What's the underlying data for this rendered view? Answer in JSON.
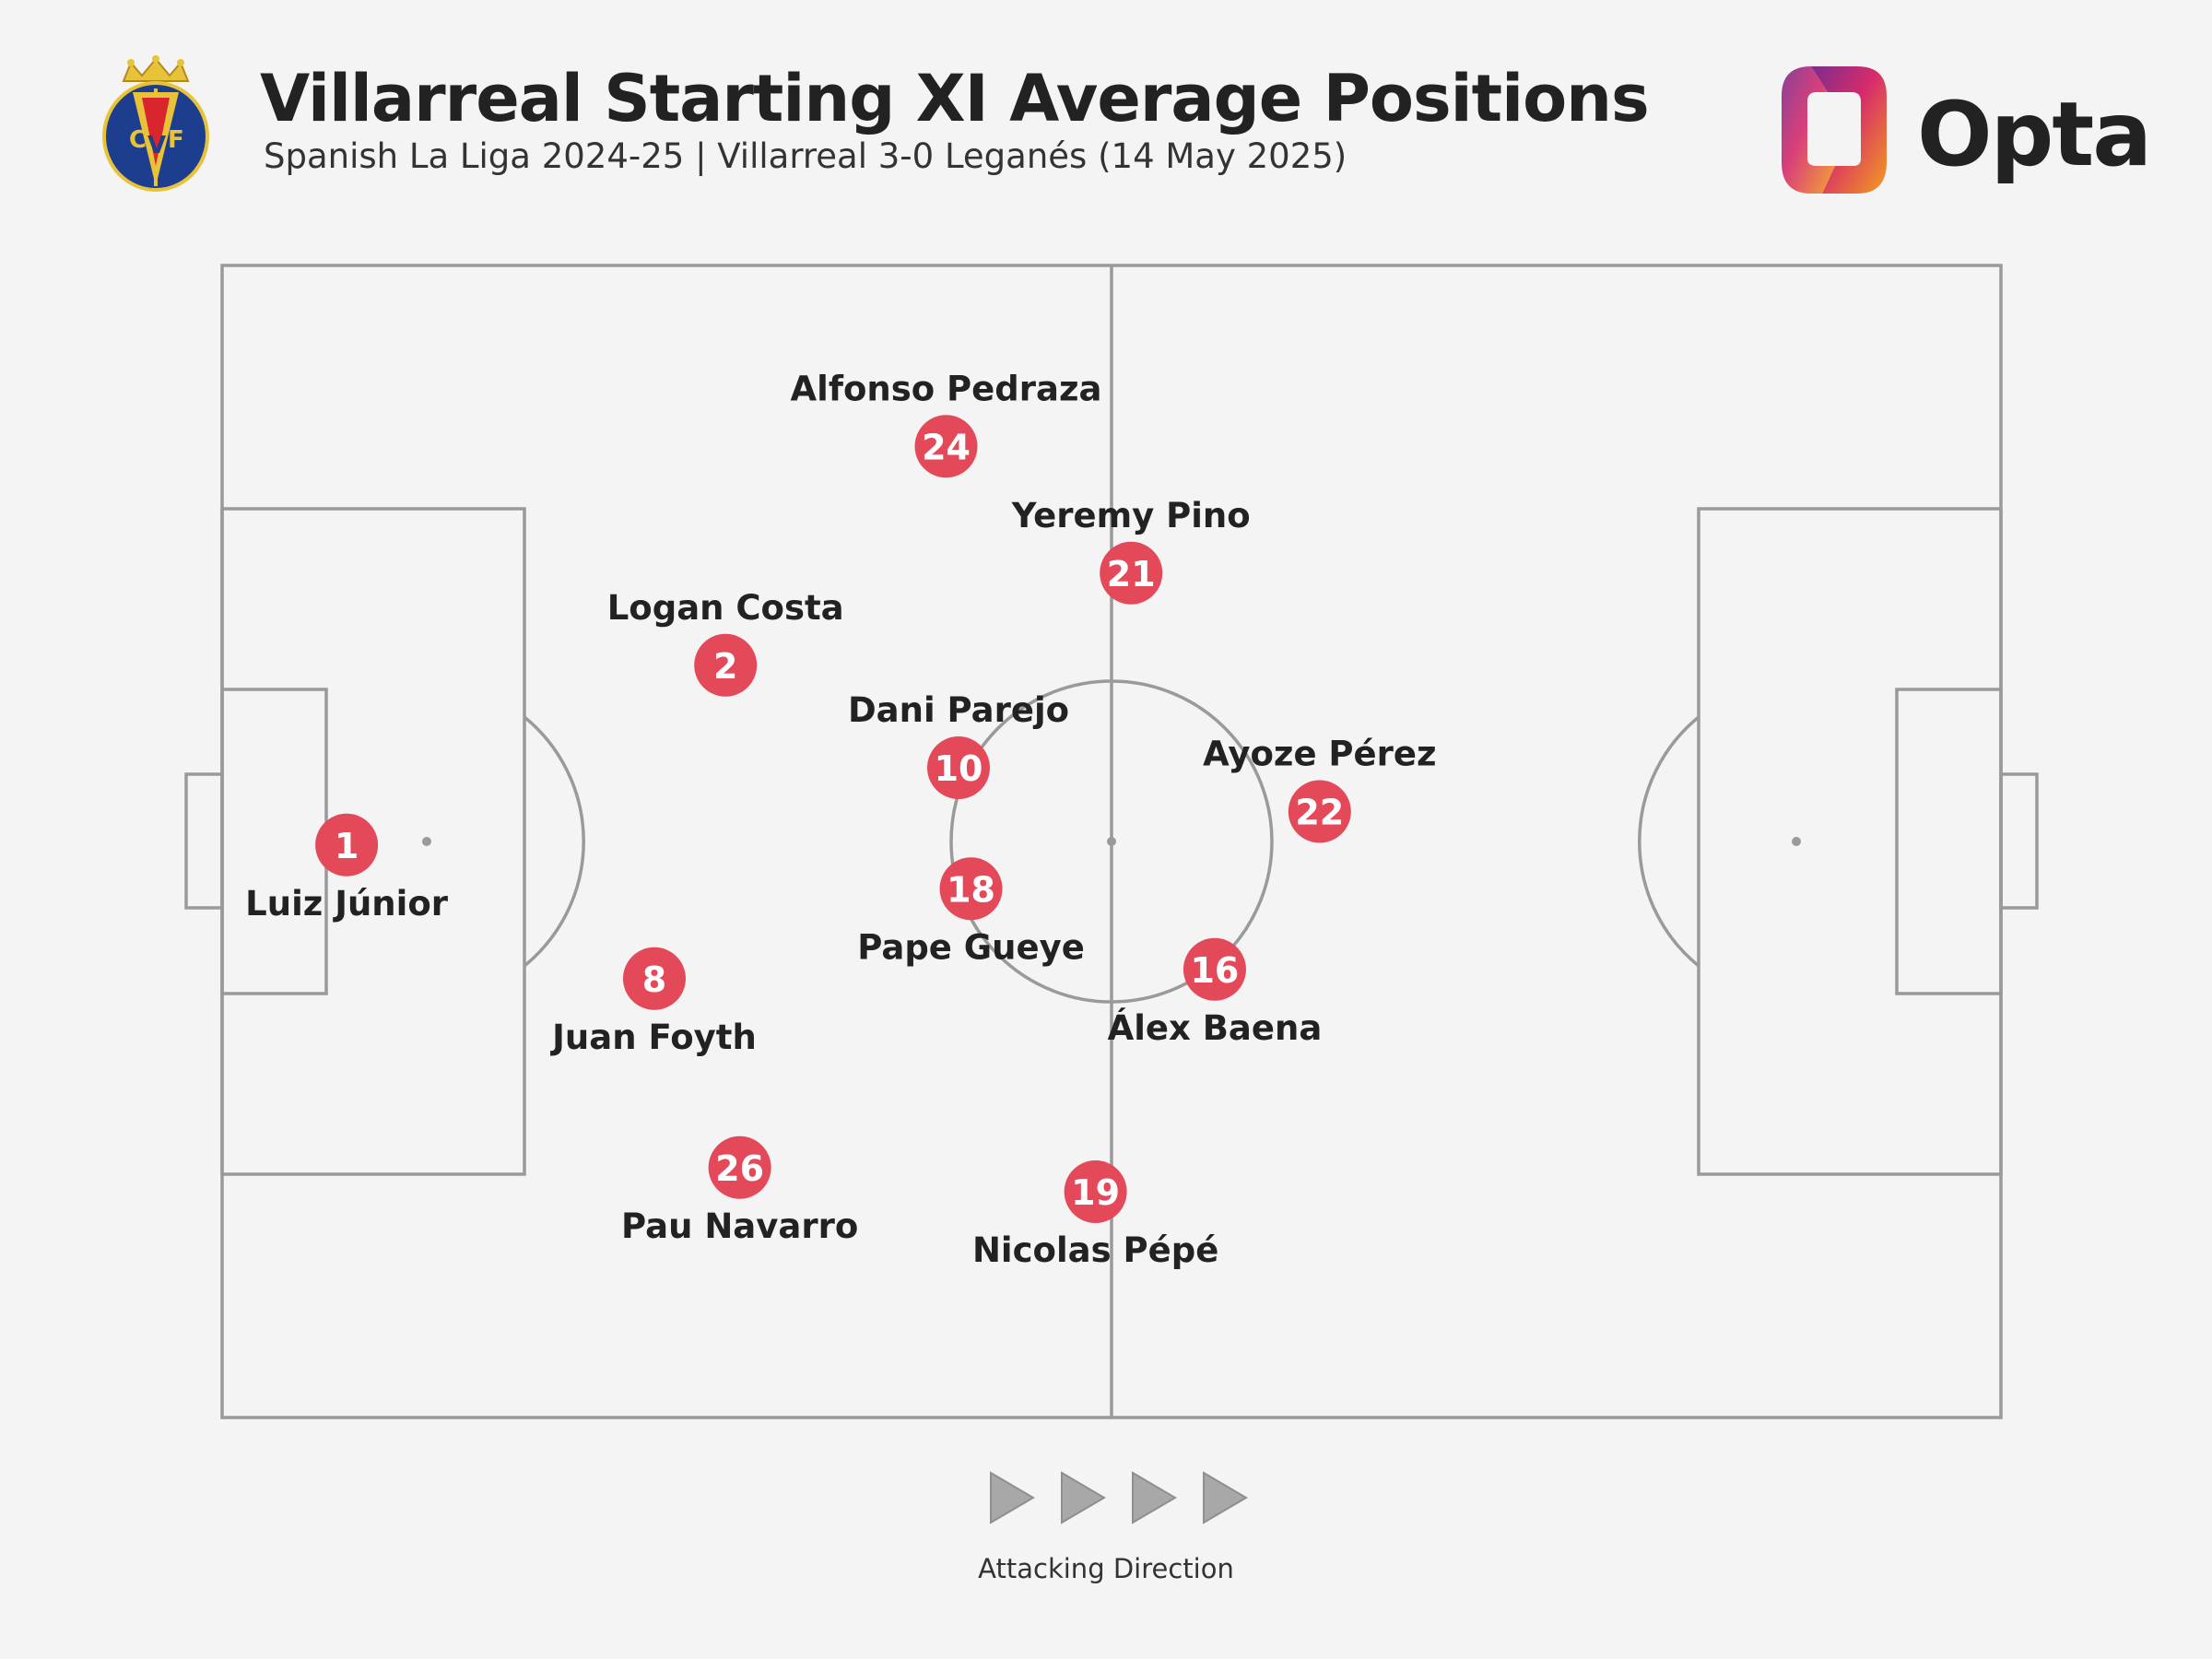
{
  "header": {
    "title": "Villarreal Starting XI Average Positions",
    "subtitle": "Spanish La Liga 2024-25 | Villarreal 3-0 Leganés (14 May 2025)",
    "crest_icon": "villarreal-crest-icon",
    "brand": "Opta",
    "brand_icon": "opta-logo-icon"
  },
  "colors": {
    "background": "#f4f4f4",
    "pitch_lines": "#9a9a9a",
    "marker": "#e4495a",
    "marker_text": "#ffffff",
    "label": "#222222",
    "arrows": "#a8a8a8"
  },
  "footer": {
    "attacking_direction": "Attacking Direction",
    "arrow_count": 4
  },
  "chart_data": {
    "type": "scatter",
    "title": "Villarreal Starting XI Average Positions",
    "subtitle": "Spanish La Liga 2024-25 | Villarreal 3-0 Leganés (14 May 2025)",
    "xlim": [
      0,
      100
    ],
    "ylim": [
      0,
      100
    ],
    "players": [
      {
        "name": "Luiz Júnior",
        "number": "1",
        "x": 7.0,
        "y": 49.7,
        "label_pos": "below"
      },
      {
        "name": "Logan Costa",
        "number": "2",
        "x": 28.3,
        "y": 65.3,
        "label_pos": "above"
      },
      {
        "name": "Juan Foyth",
        "number": "8",
        "x": 24.3,
        "y": 38.1,
        "label_pos": "below"
      },
      {
        "name": "Pau Navarro",
        "number": "26",
        "x": 29.1,
        "y": 21.7,
        "label_pos": "below"
      },
      {
        "name": "Alfonso Pedraza",
        "number": "24",
        "x": 40.7,
        "y": 84.3,
        "label_pos": "above"
      },
      {
        "name": "Dani Parejo",
        "number": "10",
        "x": 41.4,
        "y": 56.4,
        "label_pos": "above"
      },
      {
        "name": "Pape Gueye",
        "number": "18",
        "x": 42.1,
        "y": 45.9,
        "label_pos": "below"
      },
      {
        "name": "Yeremy Pino",
        "number": "21",
        "x": 51.1,
        "y": 73.3,
        "label_pos": "above"
      },
      {
        "name": "Nicolas Pépé",
        "number": "19",
        "x": 49.1,
        "y": 19.6,
        "label_pos": "below"
      },
      {
        "name": "Álex Baena",
        "number": "16",
        "x": 55.8,
        "y": 38.9,
        "label_pos": "below"
      },
      {
        "name": "Ayoze Pérez",
        "number": "22",
        "x": 61.7,
        "y": 52.6,
        "label_pos": "above"
      }
    ]
  }
}
